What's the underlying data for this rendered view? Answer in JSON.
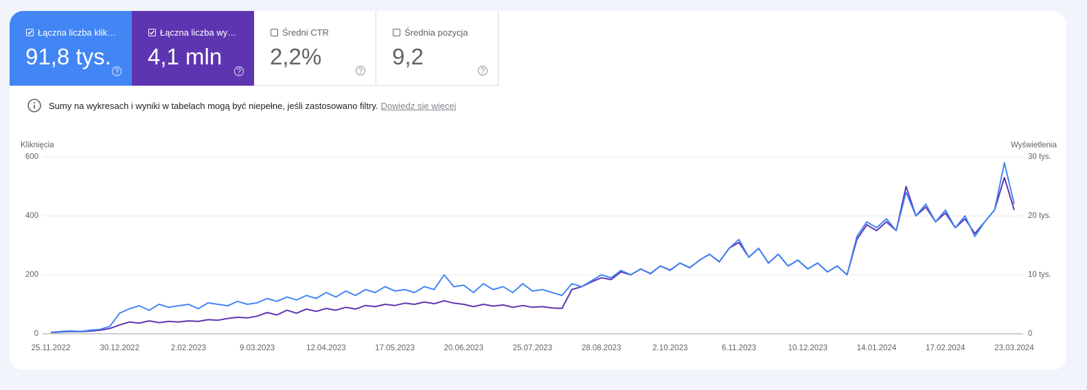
{
  "cards": [
    {
      "label": "Łączna liczba klik…",
      "value": "91,8 tys.",
      "checked": true,
      "color": "#4285f4"
    },
    {
      "label": "Łączna liczba wy…",
      "value": "4,1 mln",
      "checked": true,
      "color": "#5e35b1"
    },
    {
      "label": "Średni CTR",
      "value": "2,2%",
      "checked": false,
      "color": "#ffffff"
    },
    {
      "label": "Średnia pozycja",
      "value": "9,2",
      "checked": false,
      "color": "#ffffff"
    }
  ],
  "notice": {
    "text": "Sumy na wykresach i wyniki w tabelach mogą być niepełne, jeśli zastosowano filtry.",
    "link": "Dowiedz się więcej"
  },
  "chart_data": {
    "type": "line",
    "y_label": "Kliknięcia",
    "y2_label": "Wyświetlenia",
    "categories": [
      "25.11.2022",
      null,
      null,
      null,
      null,
      null,
      null,
      "30.12.2022",
      null,
      null,
      null,
      null,
      null,
      null,
      "2.02.2023",
      null,
      null,
      null,
      null,
      null,
      null,
      "9.03.2023",
      null,
      null,
      null,
      null,
      null,
      null,
      "12.04.2023",
      null,
      null,
      null,
      null,
      null,
      null,
      "17.05.2023",
      null,
      null,
      null,
      null,
      null,
      null,
      "20.06.2023",
      null,
      null,
      null,
      null,
      null,
      null,
      "25.07.2023",
      null,
      null,
      null,
      null,
      null,
      null,
      "28.08.2023",
      null,
      null,
      null,
      null,
      null,
      null,
      "2.10.2023",
      null,
      null,
      null,
      null,
      null,
      null,
      "6.11.2023",
      null,
      null,
      null,
      null,
      null,
      null,
      "10.12.2023",
      null,
      null,
      null,
      null,
      null,
      null,
      "14.01.2024",
      null,
      null,
      null,
      null,
      null,
      null,
      "17.02.2024",
      null,
      null,
      null,
      null,
      null,
      null,
      "23.03.2024"
    ],
    "series": [
      {
        "color": "#4285f4",
        "axis": "y",
        "values": [
          5,
          8,
          10,
          8,
          12,
          15,
          25,
          70,
          85,
          95,
          80,
          100,
          90,
          95,
          100,
          85,
          105,
          100,
          95,
          110,
          100,
          105,
          120,
          110,
          125,
          115,
          130,
          120,
          140,
          125,
          145,
          130,
          150,
          140,
          160,
          145,
          150,
          140,
          160,
          150,
          200,
          160,
          165,
          140,
          170,
          150,
          160,
          140,
          170,
          145,
          150,
          140,
          130,
          170,
          160,
          180,
          200,
          190,
          215,
          200,
          220,
          205,
          230,
          215,
          240,
          225,
          250,
          270,
          245,
          290,
          320,
          260,
          290,
          240,
          270,
          230,
          250,
          220,
          240,
          210,
          230,
          200,
          330,
          380,
          360,
          390,
          350,
          480,
          400,
          440,
          380,
          420,
          360,
          400,
          330,
          380,
          420,
          580,
          440
        ]
      },
      {
        "color": "#5e35b1",
        "axis": "y2",
        "values": [
          200,
          300,
          400,
          350,
          450,
          600,
          900,
          1500,
          2000,
          1800,
          2200,
          1900,
          2100,
          2000,
          2200,
          2100,
          2400,
          2300,
          2600,
          2800,
          2700,
          3000,
          3600,
          3200,
          4000,
          3500,
          4200,
          3800,
          4300,
          4000,
          4500,
          4200,
          4800,
          4600,
          5000,
          4800,
          5200,
          5000,
          5400,
          5100,
          5600,
          5200,
          5000,
          4600,
          5000,
          4700,
          4900,
          4500,
          4800,
          4500,
          4600,
          4400,
          4300,
          7500,
          8000,
          8800,
          9500,
          9200,
          10500,
          10000,
          11000,
          10200,
          11500,
          10800,
          12000,
          11200,
          12500,
          13500,
          12200,
          14500,
          15500,
          13000,
          14500,
          12000,
          13500,
          11500,
          12500,
          11000,
          12000,
          10500,
          11500,
          10000,
          16000,
          18500,
          17500,
          19000,
          17500,
          25000,
          20000,
          21500,
          19000,
          20500,
          18000,
          19500,
          17000,
          19000,
          21000,
          26500,
          21000
        ]
      }
    ],
    "ylim": [
      0,
      600
    ],
    "yticks": [
      0,
      200,
      400,
      600
    ],
    "y2lim": [
      0,
      30000
    ],
    "y2ticks": [
      0,
      {
        "value": 10000,
        "label": "10 tys."
      },
      {
        "value": 20000,
        "label": "20 tys."
      },
      {
        "value": 30000,
        "label": "30 tys."
      }
    ],
    "grid": true
  }
}
